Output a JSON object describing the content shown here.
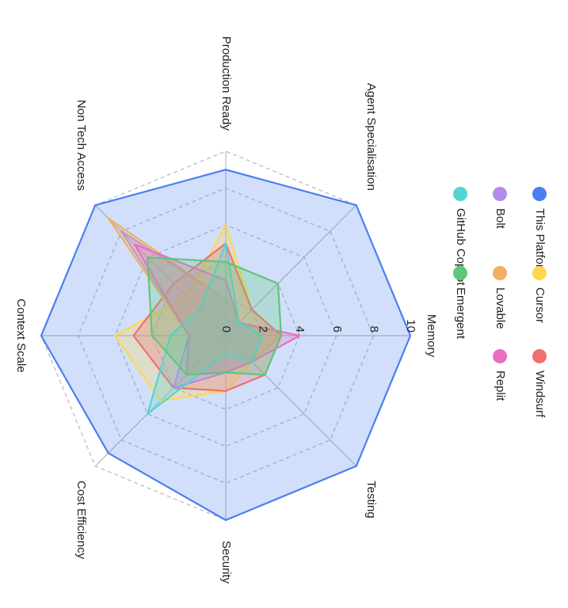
{
  "chart_data": {
    "type": "radar",
    "title": "",
    "axes": [
      "Memory",
      "Testing",
      "Security",
      "Cost Efficiency",
      "Context Scale",
      "Non Tech Access",
      "Production Ready",
      "Agent Specialisation"
    ],
    "range": [
      0,
      10
    ],
    "ticks": [
      "0",
      "2",
      "4",
      "6",
      "8",
      "10"
    ],
    "grid": true,
    "legend_position": "right",
    "series": [
      {
        "name": "This Platform",
        "color": "#4a7ff0",
        "values": [
          10,
          10,
          10,
          9,
          10,
          10,
          9,
          10
        ]
      },
      {
        "name": "Cursor",
        "color": "#ffd84d",
        "values": [
          3,
          2,
          3,
          5,
          6,
          3,
          6,
          2
        ]
      },
      {
        "name": "Windsurf",
        "color": "#f07070",
        "values": [
          3,
          3,
          3,
          4,
          5,
          4,
          5,
          2
        ]
      },
      {
        "name": "Bolt",
        "color": "#b28ce8",
        "values": [
          2,
          2,
          2,
          4,
          2,
          8,
          2,
          1
        ]
      },
      {
        "name": "Lovable",
        "color": "#f0b060",
        "values": [
          3,
          2,
          1,
          3,
          2,
          9,
          2,
          1
        ]
      },
      {
        "name": "Replit",
        "color": "#ea6fc3",
        "values": [
          4,
          2,
          2,
          3,
          2,
          7,
          3,
          1
        ]
      },
      {
        "name": "GitHub Copilot",
        "color": "#55d4d4",
        "values": [
          2,
          2,
          1,
          6,
          3,
          2,
          5,
          1
        ]
      },
      {
        "name": "Emergent",
        "color": "#5cc878",
        "values": [
          3,
          3,
          2,
          3,
          4,
          6,
          4,
          4
        ]
      }
    ]
  }
}
